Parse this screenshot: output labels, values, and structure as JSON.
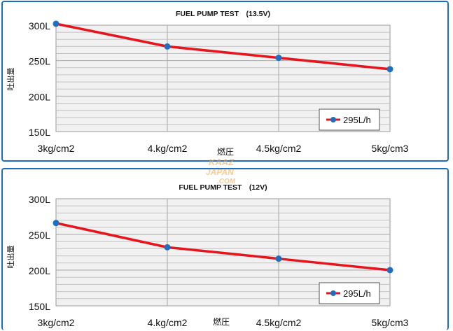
{
  "chart_data": [
    {
      "type": "line",
      "title": "FUEL PUMP TEST　(13.5V)",
      "xlabel": "燃圧",
      "ylabel": "吐出量",
      "categories": [
        "3kg/cm2",
        "4.kg/cm2",
        "4.5kg/cm2",
        "5kg/cm3"
      ],
      "y_tick_labels": [
        "300L",
        "250L",
        "200L",
        "150L"
      ],
      "y_ticks": [
        300,
        250,
        200,
        150
      ],
      "ylim": [
        150,
        300
      ],
      "grid": true,
      "legend_position": "bottom-right",
      "series": [
        {
          "name": "295L/h",
          "values": [
            302,
            270,
            254,
            238
          ]
        }
      ]
    },
    {
      "type": "line",
      "title": "FUEL PUMP TEST　(12V)",
      "xlabel": "燃圧",
      "ylabel": "吐出量",
      "categories": [
        "3kg/cm2",
        "4.kg/cm2",
        "4.5kg/cm2",
        "5kg/cm3"
      ],
      "y_tick_labels": [
        "300L",
        "250L",
        "200L",
        "150L"
      ],
      "y_ticks": [
        300,
        250,
        200,
        150
      ],
      "ylim": [
        150,
        300
      ],
      "grid": true,
      "legend_position": "bottom-right",
      "series": [
        {
          "name": "295L/h",
          "values": [
            266,
            232,
            216,
            200
          ]
        }
      ]
    }
  ],
  "colors": {
    "line": "#e8141c",
    "marker": "#1f6fc0",
    "frame": "#1a6fc4",
    "grid": "#c4c4c4",
    "plot_bg": "#f1f1f1"
  },
  "watermark": {
    "text": "KAAZ JAPAN.COM"
  }
}
